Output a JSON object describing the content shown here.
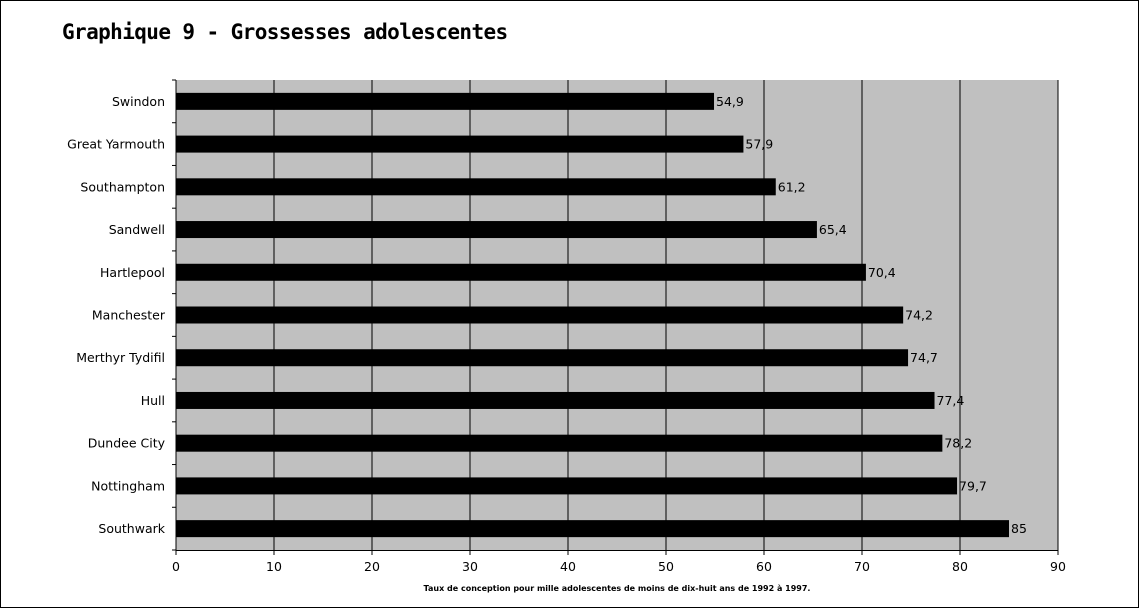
{
  "colors": {
    "plot_background": "#c0c0c0",
    "bar_fill": "#000000",
    "gridline": "#000000",
    "axis": "#000000",
    "text": "#000000"
  },
  "chart_data": {
    "type": "bar",
    "orientation": "horizontal",
    "title": "Graphique 9 - Grossesses adolescentes",
    "xlabel": "Taux de conception pour mille adolescentes de moins de dix-huit ans de 1992 à 1997.",
    "ylabel": "",
    "categories": [
      "Swindon",
      "Great Yarmouth",
      "Southampton",
      "Sandwell",
      "Hartlepool",
      "Manchester",
      "Merthyr Tydifil",
      "Hull",
      "Dundee City",
      "Nottingham",
      "Southwark"
    ],
    "values": [
      54.9,
      57.9,
      61.2,
      65.4,
      70.4,
      74.2,
      74.7,
      77.4,
      78.2,
      79.7,
      85
    ],
    "data_labels": [
      "54,9",
      "57,9",
      "61,2",
      "65,4",
      "70,4",
      "74,2",
      "74,7",
      "77,4",
      "78,2",
      "79,7",
      "85"
    ],
    "xlim": [
      0,
      90
    ],
    "xticks": [
      0,
      10,
      20,
      30,
      40,
      50,
      60,
      70,
      80,
      90
    ],
    "grid": true,
    "legend": "none"
  }
}
